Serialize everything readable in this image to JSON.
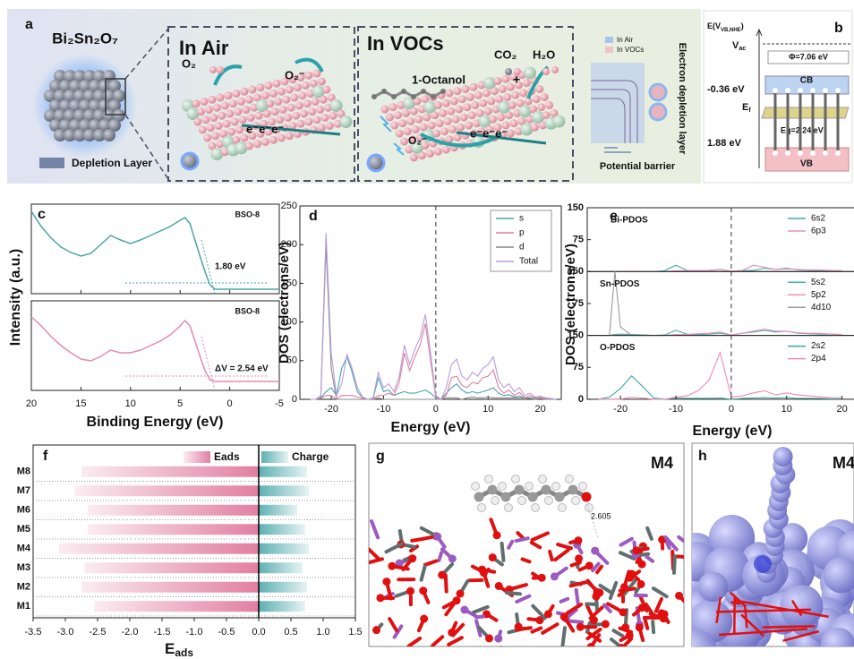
{
  "panel_a": {
    "label": "a",
    "particle": "Bi₂Sn₂O₇",
    "depletion_legend": "Depletion Layer",
    "air": {
      "title": "In Air",
      "o2": "O₂",
      "o2_minus": "O₂⁻",
      "electrons": "e⁻e⁻e⁻"
    },
    "vocs": {
      "title": "In VOCs",
      "molecule": "1-Octanol",
      "co2": "CO₂",
      "plus": "+",
      "h2o": "H₂O",
      "o2_minus": "O₂⁻",
      "electrons": "e⁻e⁻e⁻"
    },
    "band_legend": [
      "In Air",
      "In VOCs"
    ],
    "barrier_label": "Potential barrier",
    "depletion_label": "Electron depletion layer"
  },
  "panel_b": {
    "label": "b",
    "axis": [
      "E(V",
      "VB,NHE",
      ")"
    ],
    "vacuum": [
      "V",
      "ac"
    ],
    "work_function": "Φ=7.06 eV",
    "cb_level": "-0.36 eV",
    "cb": "CB",
    "fermi": [
      "E",
      "f"
    ],
    "gap": "Eg=2.24 eV",
    "vb_level": "1.88 eV",
    "vb": "VB"
  },
  "panel_g": {
    "label": "g",
    "model": "M4",
    "distance": "2.605"
  },
  "panel_h": {
    "label": "h",
    "model": "M4"
  },
  "chart_data": [
    {
      "type": "line",
      "label": "c",
      "ylabel": "Intensity (a.u.)",
      "xlabel": "Binding Energy (eV)",
      "xlim": [
        20,
        -5
      ],
      "xticks": [
        20,
        15,
        10,
        5,
        0,
        -5
      ],
      "x": [
        20,
        19,
        18,
        17,
        16,
        15,
        14,
        13,
        12,
        11,
        10,
        9,
        8,
        7,
        6,
        5,
        4.5,
        4,
        3.5,
        3,
        2.5,
        2,
        1.5,
        1,
        0,
        -2,
        -5
      ],
      "panels": [
        {
          "tag": "BSO-8",
          "annotation": "1.80 eV",
          "color": "#4aa5a6",
          "values": [
            0.92,
            0.75,
            0.62,
            0.52,
            0.46,
            0.42,
            0.45,
            0.55,
            0.65,
            0.6,
            0.56,
            0.6,
            0.65,
            0.7,
            0.75,
            0.82,
            0.85,
            0.78,
            0.6,
            0.42,
            0.25,
            0.1,
            0.05,
            0.05,
            0.05,
            0.05,
            0.05
          ]
        },
        {
          "tag": "BSO-8",
          "annotation": "ΔV = 2.54 eV",
          "color": "#e58ba7",
          "values": [
            0.82,
            0.72,
            0.6,
            0.5,
            0.42,
            0.35,
            0.33,
            0.38,
            0.45,
            0.42,
            0.42,
            0.45,
            0.5,
            0.55,
            0.62,
            0.72,
            0.78,
            0.72,
            0.55,
            0.38,
            0.22,
            0.12,
            0.1,
            0.1,
            0.1,
            0.1,
            0.1
          ]
        }
      ]
    },
    {
      "type": "line",
      "label": "d",
      "ylabel": "DOS (electrons/eV)",
      "xlabel": "Energy (eV)",
      "xlim": [
        -26,
        24
      ],
      "xticks": [
        -20,
        -10,
        0,
        10,
        20
      ],
      "ylim": [
        0,
        250
      ],
      "yticks": [
        0,
        50,
        100,
        150,
        200,
        250
      ],
      "x": [
        -24,
        -23,
        -22,
        -21,
        -20,
        -19,
        -18,
        -17,
        -16,
        -15,
        -14,
        -13,
        -12,
        -11,
        -10,
        -9,
        -8,
        -7,
        -6,
        -5,
        -4,
        -3,
        -2,
        -1,
        0,
        1,
        2,
        3,
        4,
        5,
        6,
        7,
        8,
        9,
        10,
        11,
        12,
        13,
        14,
        15,
        16,
        17,
        18,
        19,
        20,
        21,
        22,
        23
      ],
      "series": [
        {
          "name": "s",
          "color": "#4a9fb2",
          "values": [
            0,
            0,
            2,
            10,
            15,
            5,
            40,
            55,
            35,
            10,
            2,
            0,
            1,
            28,
            10,
            12,
            5,
            8,
            10,
            8,
            8,
            10,
            12,
            8,
            2,
            0,
            8,
            15,
            20,
            12,
            8,
            10,
            8,
            10,
            12,
            15,
            8,
            5,
            6,
            3,
            4,
            2,
            2,
            1,
            1,
            1,
            0,
            0
          ]
        },
        {
          "name": "p",
          "color": "#e07f9a",
          "values": [
            0,
            0,
            1,
            5,
            5,
            0,
            5,
            5,
            5,
            3,
            1,
            0,
            1,
            5,
            5,
            8,
            5,
            22,
            60,
            37,
            55,
            70,
            98,
            50,
            3,
            0,
            5,
            28,
            30,
            18,
            15,
            22,
            20,
            28,
            30,
            38,
            15,
            8,
            12,
            5,
            9,
            2,
            5,
            2,
            2,
            1,
            1,
            0
          ]
        },
        {
          "name": "d",
          "color": "#8a8a8a",
          "values": [
            0,
            0,
            2,
            200,
            40,
            0,
            0,
            0,
            0,
            0,
            0,
            0,
            0,
            2,
            0,
            0,
            0,
            0,
            0,
            0,
            0,
            0,
            0,
            0,
            0,
            0,
            2,
            2,
            2,
            0,
            2,
            3,
            2,
            2,
            3,
            2,
            2,
            2,
            2,
            2,
            2,
            2,
            1,
            0,
            1,
            0,
            0,
            0
          ]
        },
        {
          "name": "Total",
          "color": "#b89cdc",
          "values": [
            0,
            0,
            5,
            215,
            60,
            5,
            20,
            58,
            40,
            15,
            3,
            0,
            2,
            35,
            15,
            20,
            10,
            30,
            70,
            45,
            65,
            80,
            110,
            60,
            5,
            0,
            15,
            45,
            52,
            30,
            25,
            35,
            30,
            40,
            45,
            55,
            25,
            15,
            20,
            10,
            15,
            5,
            8,
            3,
            4,
            2,
            1,
            0
          ]
        }
      ]
    },
    {
      "type": "line",
      "label": "e",
      "ylabel": "DOS (electrons/eV)",
      "xlabel": "Energy (eV)",
      "xlim": [
        -26,
        22
      ],
      "xticks": [
        -20,
        -10,
        0,
        10,
        20
      ],
      "ylim": [
        0,
        150
      ],
      "x": [
        -24,
        -22,
        -21,
        -20,
        -18,
        -16,
        -14,
        -12,
        -10,
        -8,
        -6,
        -4,
        -2,
        0,
        2,
        4,
        6,
        8,
        10,
        12,
        14,
        16,
        18,
        20
      ],
      "panels": [
        {
          "title": "Bi-PDOS",
          "yticks": [
            75,
            150
          ],
          "series": [
            {
              "name": "6s2",
              "color": "#45a9a8",
              "values": [
                0,
                0,
                0,
                0,
                0,
                0,
                0,
                2,
                15,
                3,
                2,
                3,
                5,
                1,
                2,
                3,
                8,
                5,
                8,
                4,
                3,
                3,
                2,
                2
              ]
            },
            {
              "name": "6p3",
              "color": "#e890b5",
              "values": [
                0,
                0,
                0,
                0,
                0,
                0,
                0,
                0,
                2,
                2,
                3,
                2,
                5,
                1,
                3,
                15,
                10,
                5,
                6,
                5,
                4,
                4,
                3,
                2
              ]
            }
          ]
        },
        {
          "title": "Sn-PDOS",
          "yticks": [
            75,
            150
          ],
          "series": [
            {
              "name": "5s2",
              "color": "#48b0a8",
              "values": [
                0,
                0,
                2,
                3,
                2,
                1,
                0,
                1,
                12,
                3,
                2,
                3,
                5,
                1,
                5,
                8,
                12,
                8,
                10,
                5,
                4,
                3,
                3,
                2
              ]
            },
            {
              "name": "5p2",
              "color": "#f08fb8",
              "values": [
                0,
                0,
                0,
                0,
                0,
                0,
                0,
                0,
                2,
                2,
                4,
                5,
                8,
                1,
                5,
                10,
                15,
                10,
                10,
                6,
                5,
                5,
                3,
                2
              ]
            },
            {
              "name": "4d10",
              "color": "#9a9a9a",
              "values": [
                0,
                0,
                150,
                20,
                0,
                0,
                0,
                0,
                0,
                0,
                0,
                0,
                0,
                0,
                0,
                0,
                0,
                0,
                0,
                0,
                0,
                0,
                0,
                0
              ]
            }
          ]
        },
        {
          "title": "O-PDOS",
          "yticks": [
            0,
            75,
            150
          ],
          "series": [
            {
              "name": "2s2",
              "color": "#3aa6a0",
              "values": [
                0,
                5,
                15,
                25,
                55,
                30,
                3,
                0,
                3,
                2,
                2,
                2,
                3,
                0,
                2,
                3,
                4,
                3,
                4,
                2,
                2,
                2,
                1,
                1
              ]
            },
            {
              "name": "2p4",
              "color": "#f08ab0",
              "values": [
                0,
                0,
                0,
                0,
                5,
                3,
                0,
                0,
                5,
                8,
                20,
                45,
                110,
                5,
                8,
                15,
                20,
                10,
                15,
                10,
                8,
                6,
                4,
                3
              ]
            }
          ]
        }
      ]
    },
    {
      "type": "hbar",
      "label": "f",
      "xlabel": {
        "main": "E",
        "sub": "ads"
      },
      "categories": [
        "M8",
        "M7",
        "M6",
        "M5",
        "M4",
        "M3",
        "M2",
        "M1"
      ],
      "xlim": [
        -3.5,
        1.5
      ],
      "xticks": [
        -3.5,
        {
          "value": -3,
          "label": "-3.0"
        },
        -2.5,
        {
          "value": -2,
          "label": "-2.0"
        },
        -1.5,
        {
          "value": -1,
          "label": "-1.0"
        },
        -0.5,
        {
          "value": 0,
          "label": "0.0"
        },
        0.5,
        {
          "value": 1,
          "label": "1.0"
        },
        1.5
      ],
      "series": [
        {
          "name": "Eads",
          "color": "#e27fa0",
          "values": [
            -2.75,
            -2.85,
            -2.65,
            -2.65,
            -3.1,
            -2.7,
            -2.75,
            -2.55
          ]
        },
        {
          "name": "Charge",
          "color": "#5db0b2",
          "values": [
            0.75,
            0.78,
            0.6,
            0.72,
            0.78,
            0.68,
            0.75,
            0.72
          ]
        }
      ]
    }
  ]
}
